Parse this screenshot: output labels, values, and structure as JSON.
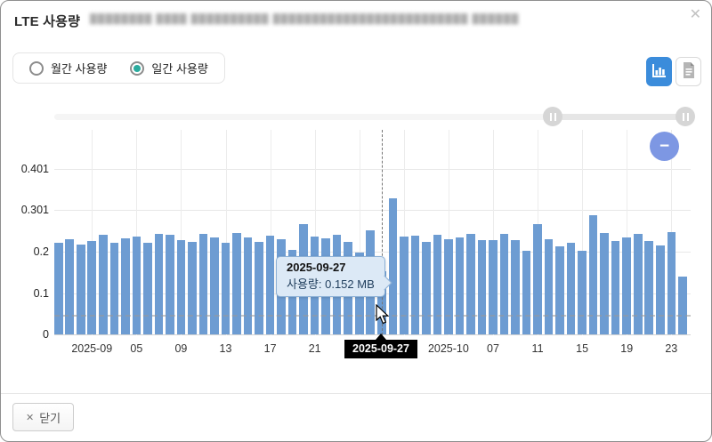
{
  "dialog": {
    "title": "LTE 사용량",
    "masked_subtitle": "████████ ████ ██████████ █████████████████████████ ██████",
    "close_icon": "✕"
  },
  "controls": {
    "radios": [
      {
        "label": "월간 사용량",
        "selected": false
      },
      {
        "label": "일간 사용량",
        "selected": true
      }
    ],
    "radio_selected_color": "#2bab9e",
    "view_toggle": [
      {
        "name": "chart-view",
        "active": true
      },
      {
        "name": "table-view",
        "active": false
      }
    ],
    "toggle_active_color": "#3b8cdb",
    "zoom_out_label": "−",
    "zoom_out_color": "#7d97e3"
  },
  "footer": {
    "close_icon": "✕",
    "close_label": "닫기"
  },
  "chart_data": {
    "type": "bar",
    "title": "LTE 사용량 (일간)",
    "xlabel": "",
    "ylabel": "",
    "unit": "MB",
    "bar_color": "#6d9cd2",
    "grid": true,
    "ylim": [
      0,
      0.497
    ],
    "y_ticks": [
      {
        "value": 0,
        "label": "0"
      },
      {
        "value": 0.1,
        "label": "0.1"
      },
      {
        "value": 0.2,
        "label": "0.2"
      },
      {
        "value": 0.301,
        "label": "0.301"
      },
      {
        "value": 0.401,
        "label": "0.401"
      }
    ],
    "threshold_value": 0.045,
    "x": [
      "2025-08-29",
      "2025-08-30",
      "2025-08-31",
      "2025-09-01",
      "2025-09-02",
      "2025-09-03",
      "2025-09-04",
      "2025-09-05",
      "2025-09-06",
      "2025-09-07",
      "2025-09-08",
      "2025-09-09",
      "2025-09-10",
      "2025-09-11",
      "2025-09-12",
      "2025-09-13",
      "2025-09-14",
      "2025-09-15",
      "2025-09-16",
      "2025-09-17",
      "2025-09-18",
      "2025-09-19",
      "2025-09-20",
      "2025-09-21",
      "2025-09-22",
      "2025-09-23",
      "2025-09-24",
      "2025-09-25",
      "2025-09-26",
      "2025-09-27",
      "2025-09-28",
      "2025-09-29",
      "2025-09-30",
      "2025-10-01",
      "2025-10-02",
      "2025-10-03",
      "2025-10-04",
      "2025-10-05",
      "2025-10-06",
      "2025-10-07",
      "2025-10-08",
      "2025-10-09",
      "2025-10-10",
      "2025-10-11",
      "2025-10-12",
      "2025-10-13",
      "2025-10-14",
      "2025-10-15",
      "2025-10-16",
      "2025-10-17",
      "2025-10-18",
      "2025-10-19",
      "2025-10-20",
      "2025-10-21",
      "2025-10-22",
      "2025-10-23",
      "2025-10-24"
    ],
    "values": [
      0.222,
      0.231,
      0.218,
      0.226,
      0.241,
      0.221,
      0.233,
      0.237,
      0.221,
      0.243,
      0.241,
      0.228,
      0.224,
      0.243,
      0.234,
      0.222,
      0.245,
      0.235,
      0.224,
      0.239,
      0.231,
      0.204,
      0.266,
      0.236,
      0.233,
      0.24,
      0.224,
      0.198,
      0.251,
      0.152,
      0.33,
      0.237,
      0.239,
      0.223,
      0.241,
      0.23,
      0.234,
      0.243,
      0.228,
      0.229,
      0.243,
      0.229,
      0.203,
      0.266,
      0.231,
      0.213,
      0.221,
      0.203,
      0.288,
      0.246,
      0.226,
      0.234,
      0.243,
      0.226,
      0.215,
      0.248,
      0.14
    ],
    "x_ticks": [
      {
        "index": 3,
        "label": "2025-09"
      },
      {
        "index": 7,
        "label": "05"
      },
      {
        "index": 11,
        "label": "09"
      },
      {
        "index": 15,
        "label": "13"
      },
      {
        "index": 19,
        "label": "17"
      },
      {
        "index": 23,
        "label": "21"
      },
      {
        "index": 27,
        "label": ""
      },
      {
        "index": 31,
        "label": ""
      },
      {
        "index": 35,
        "label": "2025-10"
      },
      {
        "index": 39,
        "label": "07"
      },
      {
        "index": 43,
        "label": "11"
      },
      {
        "index": 47,
        "label": "15"
      },
      {
        "index": 51,
        "label": "19"
      },
      {
        "index": 55,
        "label": "23"
      }
    ],
    "hover": {
      "index": 29,
      "date": "2025-09-27",
      "value_mb": 0.152,
      "tooltip_title": "2025-09-27",
      "tooltip_line": "사용량: 0.152 MB",
      "axis_label": "2025-09-27"
    }
  }
}
